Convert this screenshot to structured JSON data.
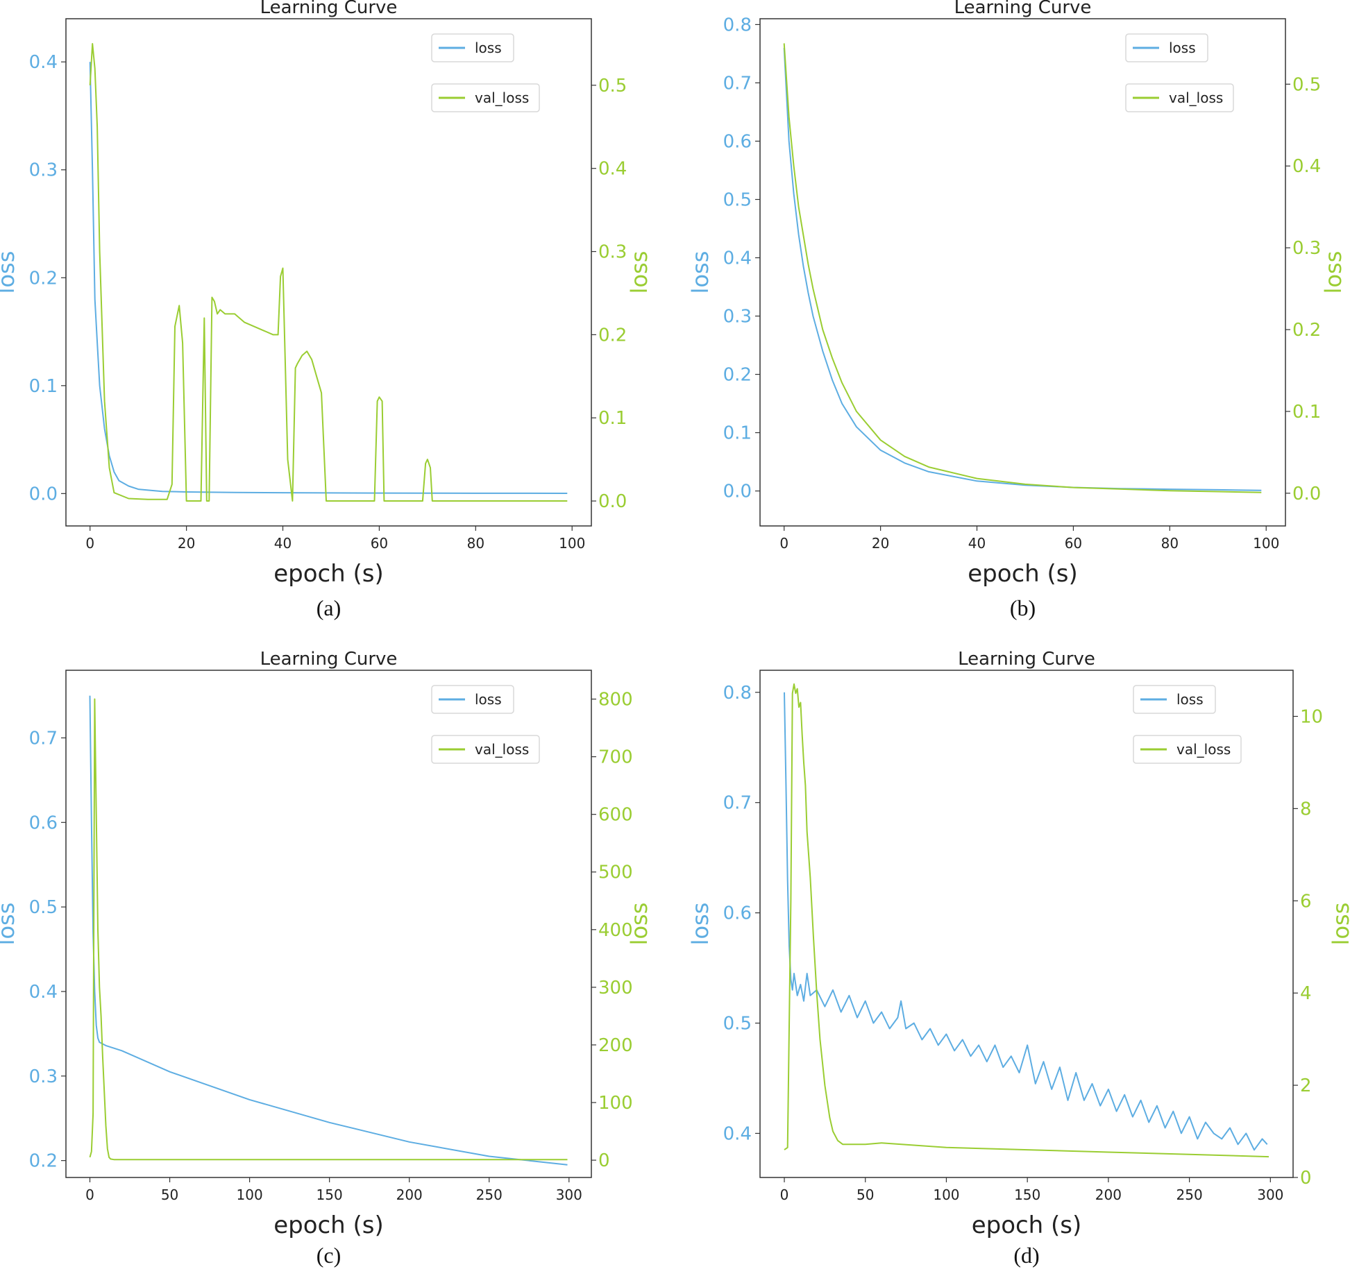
{
  "colors": {
    "loss": "#5dade2",
    "val_loss": "#9acd32",
    "axis": "#333333",
    "text": "#222222"
  },
  "chart_data": [
    {
      "type": "line",
      "caption": "(a)",
      "title": "Learning Curve",
      "xlabel": "epoch (s)",
      "ylabel_left": "loss",
      "ylabel_right": "loss",
      "xlim": [
        -5,
        104
      ],
      "ylim_left": [
        -0.03,
        0.44
      ],
      "ylim_right": [
        -0.03,
        0.58
      ],
      "xticks": [
        0,
        20,
        40,
        60,
        80,
        100
      ],
      "yticks_left": [
        "0.0",
        "0.1",
        "0.2",
        "0.3",
        "0.4"
      ],
      "yticks_right": [
        "0.0",
        "0.1",
        "0.2",
        "0.3",
        "0.4",
        "0.5"
      ],
      "legend": [
        "loss",
        "val_loss"
      ],
      "series": [
        {
          "name": "loss",
          "axis": "left",
          "x": [
            0,
            0.5,
            1,
            1.5,
            2,
            3,
            4,
            5,
            6,
            8,
            10,
            15,
            20,
            30,
            40,
            50,
            60,
            70,
            80,
            90,
            99
          ],
          "y": [
            0.4,
            0.3,
            0.18,
            0.14,
            0.1,
            0.06,
            0.035,
            0.02,
            0.012,
            0.007,
            0.004,
            0.002,
            0.0015,
            0.001,
            0.0008,
            0.0006,
            0.0005,
            0.0004,
            0.0003,
            0.0003,
            0.0002
          ]
        },
        {
          "name": "val_loss",
          "axis": "right",
          "x": [
            0,
            0.5,
            1,
            1.5,
            2,
            3,
            4,
            5,
            8,
            12,
            16,
            17,
            17.6,
            18.5,
            19.2,
            20,
            23,
            23.7,
            24.2,
            24.7,
            25.3,
            25.8,
            26.4,
            27,
            28,
            30,
            32,
            34,
            36,
            38,
            39,
            39.5,
            40,
            41,
            42,
            42.6,
            43,
            44,
            45,
            46,
            47,
            48,
            49,
            59,
            59.6,
            60,
            60.6,
            61,
            69,
            69.6,
            70,
            70.6,
            71,
            80,
            90,
            99
          ],
          "y": [
            0.5,
            0.55,
            0.52,
            0.45,
            0.3,
            0.12,
            0.04,
            0.01,
            0.003,
            0.002,
            0.002,
            0.02,
            0.21,
            0.235,
            0.19,
            0.0,
            0.0,
            0.22,
            0.0,
            0.0,
            0.245,
            0.24,
            0.225,
            0.23,
            0.225,
            0.225,
            0.215,
            0.21,
            0.205,
            0.2,
            0.2,
            0.27,
            0.28,
            0.05,
            0.0,
            0.16,
            0.165,
            0.175,
            0.18,
            0.17,
            0.15,
            0.13,
            0.0,
            0.0,
            0.12,
            0.125,
            0.12,
            0.0,
            0.0,
            0.045,
            0.05,
            0.04,
            0.0,
            0.0,
            0.0,
            0.0
          ]
        }
      ]
    },
    {
      "type": "line",
      "caption": "(b)",
      "title": "Learning Curve",
      "xlabel": "epoch (s)",
      "ylabel_left": "loss",
      "ylabel_right": "loss",
      "xlim": [
        -5,
        104
      ],
      "ylim_left": [
        -0.06,
        0.81
      ],
      "ylim_right": [
        -0.04,
        0.58
      ],
      "xticks": [
        0,
        20,
        40,
        60,
        80,
        100
      ],
      "yticks_left": [
        "0.0",
        "0.1",
        "0.2",
        "0.3",
        "0.4",
        "0.5",
        "0.6",
        "0.7",
        "0.8"
      ],
      "yticks_right": [
        "0.0",
        "0.1",
        "0.2",
        "0.3",
        "0.4",
        "0.5"
      ],
      "legend": [
        "loss",
        "val_loss"
      ],
      "series": [
        {
          "name": "loss",
          "axis": "left",
          "x": [
            0,
            1,
            2,
            3,
            4,
            5,
            6,
            8,
            10,
            12,
            15,
            20,
            25,
            30,
            40,
            50,
            60,
            70,
            80,
            90,
            99
          ],
          "y": [
            0.76,
            0.6,
            0.51,
            0.44,
            0.385,
            0.34,
            0.3,
            0.24,
            0.19,
            0.15,
            0.11,
            0.07,
            0.048,
            0.033,
            0.017,
            0.01,
            0.006,
            0.004,
            0.003,
            0.002,
            0.001
          ]
        },
        {
          "name": "val_loss",
          "axis": "right",
          "x": [
            0,
            1,
            2,
            3,
            4,
            5,
            6,
            8,
            10,
            12,
            15,
            20,
            25,
            30,
            40,
            50,
            60,
            70,
            80,
            90,
            99
          ],
          "y": [
            0.55,
            0.46,
            0.4,
            0.35,
            0.315,
            0.28,
            0.25,
            0.2,
            0.165,
            0.135,
            0.1,
            0.065,
            0.045,
            0.032,
            0.018,
            0.011,
            0.007,
            0.005,
            0.003,
            0.002,
            0.001
          ]
        }
      ]
    },
    {
      "type": "line",
      "caption": "(c)",
      "title": "Learning Curve",
      "xlabel": "epoch (s)",
      "ylabel_left": "loss",
      "ylabel_right": "loss",
      "xlim": [
        -15,
        314
      ],
      "ylim_left": [
        0.18,
        0.78
      ],
      "ylim_right": [
        -30,
        850
      ],
      "xticks": [
        0,
        50,
        100,
        150,
        200,
        250,
        300
      ],
      "yticks_left": [
        "0.2",
        "0.3",
        "0.4",
        "0.5",
        "0.6",
        "0.7"
      ],
      "yticks_right": [
        "0",
        "100",
        "200",
        "300",
        "400",
        "500",
        "600",
        "700",
        "800"
      ],
      "legend": [
        "loss",
        "val_loss"
      ],
      "series": [
        {
          "name": "loss",
          "axis": "left",
          "x": [
            0,
            1,
            2,
            3,
            4,
            5,
            6,
            8,
            10,
            20,
            50,
            100,
            150,
            200,
            250,
            299
          ],
          "y": [
            0.75,
            0.6,
            0.47,
            0.4,
            0.36,
            0.345,
            0.34,
            0.338,
            0.336,
            0.33,
            0.305,
            0.272,
            0.245,
            0.222,
            0.205,
            0.195
          ]
        },
        {
          "name": "val_loss",
          "axis": "right",
          "x": [
            0,
            1,
            2,
            3,
            4,
            5,
            6,
            7,
            8,
            9,
            10,
            11,
            12,
            13,
            15,
            20,
            50,
            100,
            200,
            299
          ],
          "y": [
            5,
            15,
            80,
            800,
            600,
            400,
            300,
            250,
            180,
            120,
            60,
            20,
            5,
            2,
            1,
            1,
            1,
            1,
            1,
            1
          ]
        }
      ]
    },
    {
      "type": "line",
      "caption": "(d)",
      "title": "Learning Curve",
      "xlabel": "epoch (s)",
      "ylabel_left": "loss",
      "ylabel_right": "loss",
      "xlim": [
        -15,
        314
      ],
      "ylim_left": [
        0.36,
        0.82
      ],
      "ylim_right": [
        0,
        11
      ],
      "xticks": [
        0,
        50,
        100,
        150,
        200,
        250,
        300
      ],
      "yticks_left": [
        "0.4",
        "0.5",
        "0.6",
        "0.7",
        "0.8"
      ],
      "yticks_right": [
        "0",
        "2",
        "4",
        "6",
        "8",
        "10"
      ],
      "legend": [
        "loss",
        "val_loss"
      ],
      "series": [
        {
          "name": "loss",
          "axis": "left",
          "x": [
            0,
            1,
            2,
            3,
            4,
            5,
            6,
            8,
            10,
            12,
            14,
            16,
            20,
            25,
            30,
            35,
            40,
            45,
            50,
            55,
            60,
            65,
            70,
            72,
            75,
            80,
            85,
            90,
            95,
            100,
            105,
            110,
            115,
            120,
            125,
            130,
            135,
            140,
            145,
            150,
            155,
            160,
            165,
            170,
            175,
            180,
            185,
            190,
            195,
            200,
            205,
            210,
            215,
            220,
            225,
            230,
            235,
            240,
            245,
            250,
            255,
            260,
            265,
            270,
            275,
            280,
            285,
            290,
            295,
            298
          ],
          "y": [
            0.8,
            0.72,
            0.63,
            0.57,
            0.54,
            0.53,
            0.545,
            0.525,
            0.535,
            0.52,
            0.545,
            0.525,
            0.53,
            0.515,
            0.53,
            0.51,
            0.525,
            0.505,
            0.52,
            0.5,
            0.51,
            0.495,
            0.505,
            0.52,
            0.495,
            0.5,
            0.485,
            0.495,
            0.48,
            0.49,
            0.475,
            0.485,
            0.47,
            0.48,
            0.465,
            0.48,
            0.46,
            0.47,
            0.455,
            0.48,
            0.445,
            0.465,
            0.44,
            0.46,
            0.43,
            0.455,
            0.43,
            0.445,
            0.425,
            0.44,
            0.42,
            0.435,
            0.415,
            0.43,
            0.41,
            0.425,
            0.405,
            0.42,
            0.4,
            0.415,
            0.395,
            0.41,
            0.4,
            0.395,
            0.405,
            0.39,
            0.4,
            0.385,
            0.395,
            0.39
          ]
        },
        {
          "name": "val_loss",
          "axis": "right",
          "x": [
            0,
            2,
            4,
            5,
            6,
            7,
            8,
            9,
            10,
            11,
            12,
            13,
            14,
            16,
            18,
            20,
            22,
            25,
            28,
            30,
            33,
            36,
            40,
            50,
            60,
            80,
            100,
            150,
            200,
            250,
            299
          ],
          "y": [
            0.6,
            0.65,
            6,
            10.5,
            10.7,
            10.5,
            10.6,
            10.2,
            10.3,
            9.6,
            9,
            8.5,
            7.5,
            6.5,
            5.2,
            4,
            3,
            2,
            1.3,
            1,
            0.8,
            0.72,
            0.72,
            0.72,
            0.75,
            0.7,
            0.65,
            0.6,
            0.55,
            0.5,
            0.45
          ]
        }
      ]
    }
  ]
}
